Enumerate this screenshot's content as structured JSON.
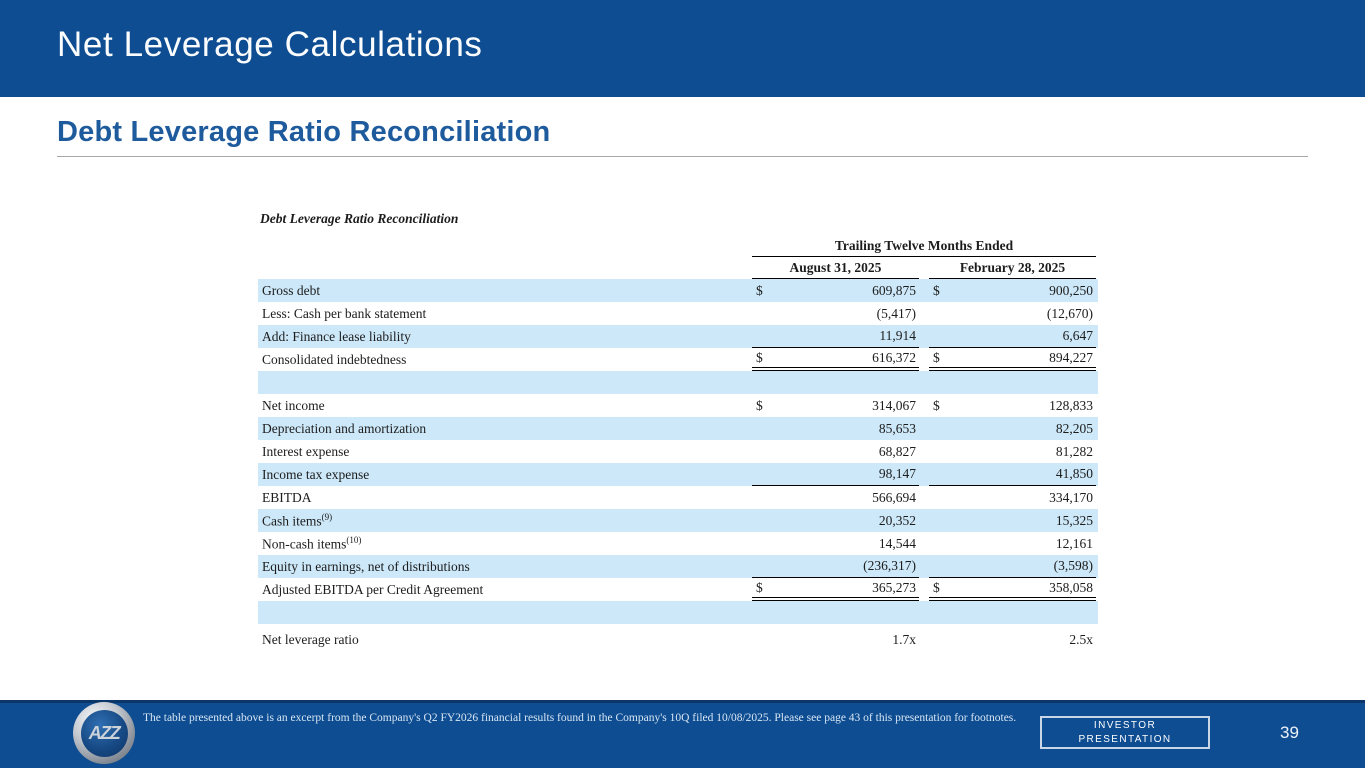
{
  "slide": {
    "title": "Net Leverage Calculations",
    "subtitle": "Debt Leverage Ratio Reconciliation"
  },
  "table": {
    "title": "Debt Leverage Ratio Reconciliation",
    "group_header": "Trailing Twelve Months Ended",
    "columns": [
      "August 31, 2025",
      "February 28, 2025"
    ],
    "rows": [
      {
        "label": "Gross debt",
        "d1": "$",
        "v1": "609,875",
        "d2": "$",
        "v2": "900,250"
      },
      {
        "label": "Less: Cash per bank statement",
        "v1": "(5,417)",
        "v2": "(12,670)"
      },
      {
        "label": "Add: Finance lease liability",
        "v1": "11,914",
        "v2": "6,647"
      },
      {
        "label": "Consolidated indebtedness",
        "d1": "$",
        "v1": "616,372",
        "d2": "$",
        "v2": "894,227"
      },
      {
        "label": ""
      },
      {
        "label": "Net income",
        "d1": "$",
        "v1": "314,067",
        "d2": "$",
        "v2": "128,833"
      },
      {
        "label": "Depreciation and amortization",
        "v1": "85,653",
        "v2": "82,205"
      },
      {
        "label": "Interest expense",
        "v1": "68,827",
        "v2": "81,282"
      },
      {
        "label": "Income tax expense",
        "v1": "98,147",
        "v2": "41,850"
      },
      {
        "label": "EBITDA",
        "v1": "566,694",
        "v2": "334,170"
      },
      {
        "label": "Cash items",
        "sup": "(9)",
        "v1": "20,352",
        "v2": "15,325"
      },
      {
        "label": "Non-cash items",
        "sup": "(10)",
        "v1": "14,544",
        "v2": "12,161"
      },
      {
        "label": "Equity in earnings, net of distributions",
        "v1": "(236,317)",
        "v2": "(3,598)"
      },
      {
        "label": "Adjusted EBITDA per Credit Agreement",
        "d1": "$",
        "v1": "365,273",
        "d2": "$",
        "v2": "358,058"
      },
      {
        "label": ""
      },
      {
        "label": "Net leverage ratio",
        "v1": "1.7x",
        "v2": "2.5x"
      }
    ]
  },
  "footer": {
    "note": "The table presented above is an excerpt from the Company's Q2 FY2026 financial results found in the Company's 10Q filed 10/08/2025. Please see page 43 of this presentation for footnotes.",
    "badge_line1": "INVESTOR",
    "badge_line2": "PRESENTATION",
    "page_number": "39",
    "logo_text": "AZZ"
  },
  "colors": {
    "banner_blue": "#0e4d91",
    "row_highlight_blue": "#cde8f8",
    "heading_blue": "#1e5b9d"
  }
}
